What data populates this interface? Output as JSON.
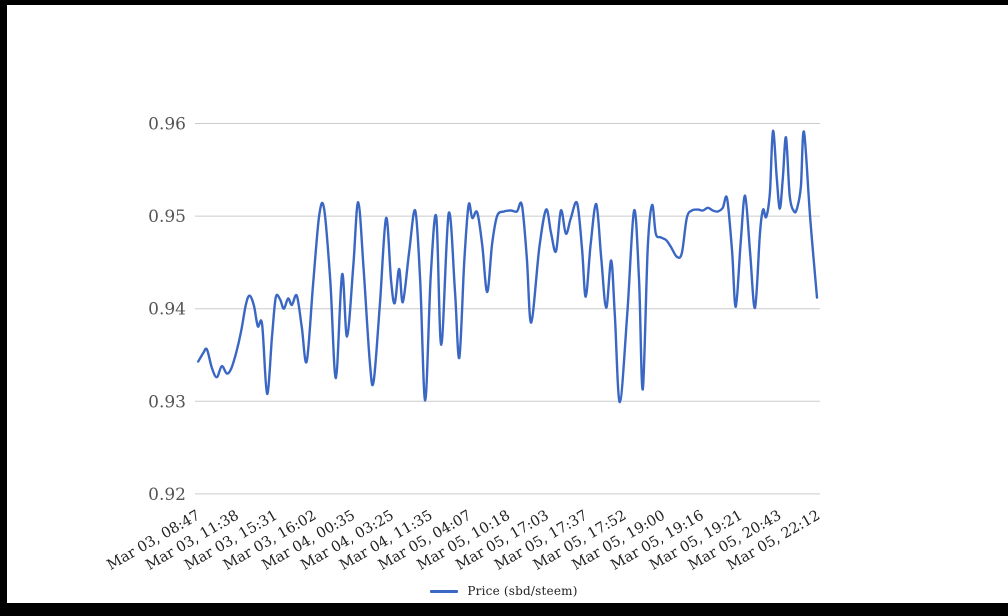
{
  "chart_data": {
    "type": "line",
    "title": "",
    "legend": "Price (sbd/steem)",
    "legend_position": "bottom",
    "series": [
      {
        "name": "Price (sbd/steem)",
        "points": [
          [
            0.002,
            0.9343
          ],
          [
            0.01,
            0.9352
          ],
          [
            0.016,
            0.9356
          ],
          [
            0.024,
            0.9336
          ],
          [
            0.032,
            0.9326
          ],
          [
            0.04,
            0.9338
          ],
          [
            0.048,
            0.933
          ],
          [
            0.055,
            0.9335
          ],
          [
            0.063,
            0.9352
          ],
          [
            0.071,
            0.9375
          ],
          [
            0.079,
            0.9405
          ],
          [
            0.085,
            0.9414
          ],
          [
            0.092,
            0.9403
          ],
          [
            0.098,
            0.9381
          ],
          [
            0.105,
            0.9383
          ],
          [
            0.113,
            0.9308
          ],
          [
            0.121,
            0.937
          ],
          [
            0.127,
            0.9412
          ],
          [
            0.134,
            0.941
          ],
          [
            0.14,
            0.94
          ],
          [
            0.147,
            0.9411
          ],
          [
            0.153,
            0.9404
          ],
          [
            0.161,
            0.9414
          ],
          [
            0.169,
            0.938
          ],
          [
            0.177,
            0.9343
          ],
          [
            0.187,
            0.9424
          ],
          [
            0.197,
            0.95
          ],
          [
            0.205,
            0.9508
          ],
          [
            0.215,
            0.943
          ],
          [
            0.224,
            0.9325
          ],
          [
            0.234,
            0.9437
          ],
          [
            0.242,
            0.937
          ],
          [
            0.252,
            0.9445
          ],
          [
            0.26,
            0.9515
          ],
          [
            0.269,
            0.944
          ],
          [
            0.279,
            0.934
          ],
          [
            0.285,
            0.9322
          ],
          [
            0.295,
            0.9405
          ],
          [
            0.305,
            0.9498
          ],
          [
            0.313,
            0.943
          ],
          [
            0.319,
            0.9406
          ],
          [
            0.326,
            0.9443
          ],
          [
            0.332,
            0.9407
          ],
          [
            0.342,
            0.946
          ],
          [
            0.352,
            0.9506
          ],
          [
            0.36,
            0.943
          ],
          [
            0.368,
            0.9301
          ],
          [
            0.377,
            0.9435
          ],
          [
            0.386,
            0.9499
          ],
          [
            0.394,
            0.9361
          ],
          [
            0.406,
            0.9503
          ],
          [
            0.416,
            0.942
          ],
          [
            0.423,
            0.9347
          ],
          [
            0.431,
            0.945
          ],
          [
            0.438,
            0.9512
          ],
          [
            0.444,
            0.9498
          ],
          [
            0.452,
            0.9504
          ],
          [
            0.46,
            0.9469
          ],
          [
            0.468,
            0.9418
          ],
          [
            0.476,
            0.947
          ],
          [
            0.484,
            0.95
          ],
          [
            0.495,
            0.9505
          ],
          [
            0.506,
            0.9506
          ],
          [
            0.516,
            0.9505
          ],
          [
            0.524,
            0.9512
          ],
          [
            0.532,
            0.9455
          ],
          [
            0.539,
            0.9385
          ],
          [
            0.552,
            0.9465
          ],
          [
            0.563,
            0.9507
          ],
          [
            0.571,
            0.9482
          ],
          [
            0.579,
            0.9462
          ],
          [
            0.587,
            0.9506
          ],
          [
            0.595,
            0.9481
          ],
          [
            0.603,
            0.9498
          ],
          [
            0.613,
            0.9514
          ],
          [
            0.621,
            0.9465
          ],
          [
            0.627,
            0.9413
          ],
          [
            0.635,
            0.947
          ],
          [
            0.644,
            0.9513
          ],
          [
            0.652,
            0.9455
          ],
          [
            0.66,
            0.9401
          ],
          [
            0.668,
            0.9452
          ],
          [
            0.674,
            0.9392
          ],
          [
            0.682,
            0.9299
          ],
          [
            0.694,
            0.9395
          ],
          [
            0.705,
            0.9506
          ],
          [
            0.713,
            0.943
          ],
          [
            0.719,
            0.9313
          ],
          [
            0.727,
            0.9465
          ],
          [
            0.734,
            0.9512
          ],
          [
            0.74,
            0.9481
          ],
          [
            0.748,
            0.9477
          ],
          [
            0.757,
            0.9474
          ],
          [
            0.765,
            0.9466
          ],
          [
            0.774,
            0.9456
          ],
          [
            0.782,
            0.946
          ],
          [
            0.79,
            0.9498
          ],
          [
            0.798,
            0.9506
          ],
          [
            0.808,
            0.9507
          ],
          [
            0.816,
            0.9506
          ],
          [
            0.824,
            0.9509
          ],
          [
            0.832,
            0.9506
          ],
          [
            0.84,
            0.9505
          ],
          [
            0.848,
            0.9509
          ],
          [
            0.855,
            0.9519
          ],
          [
            0.863,
            0.9462
          ],
          [
            0.869,
            0.9402
          ],
          [
            0.877,
            0.9472
          ],
          [
            0.884,
            0.9522
          ],
          [
            0.892,
            0.9462
          ],
          [
            0.9,
            0.9401
          ],
          [
            0.908,
            0.9482
          ],
          [
            0.913,
            0.9507
          ],
          [
            0.918,
            0.9499
          ],
          [
            0.924,
            0.9525
          ],
          [
            0.929,
            0.9592
          ],
          [
            0.935,
            0.9542
          ],
          [
            0.94,
            0.9508
          ],
          [
            0.945,
            0.9542
          ],
          [
            0.95,
            0.9585
          ],
          [
            0.956,
            0.9522
          ],
          [
            0.963,
            0.9505
          ],
          [
            0.968,
            0.9509
          ],
          [
            0.974,
            0.9532
          ],
          [
            0.979,
            0.9591
          ],
          [
            0.989,
            0.9498
          ],
          [
            1.0,
            0.9412
          ]
        ]
      }
    ],
    "x_tick_labels": [
      "Mar 03, 08:47",
      "Mar 03, 11:38",
      "Mar 03, 15:31",
      "Mar 03, 16:02",
      "Mar 04, 00:35",
      "Mar 04, 03:25",
      "Mar 04, 11:35",
      "Mar 05, 04:07",
      "Mar 05, 10:18",
      "Mar 05, 17:03",
      "Mar 05, 17:37",
      "Mar 05, 17:52",
      "Mar 05, 19:00",
      "Mar 05, 19:16",
      "Mar 05, 19:21",
      "Mar 05, 20:43",
      "Mar 05, 22:12"
    ],
    "y_tick_labels": [
      "0.92",
      "0.93",
      "0.94",
      "0.95",
      "0.96"
    ],
    "y_ticks": [
      0.92,
      0.93,
      0.94,
      0.95,
      0.96
    ],
    "ylim": [
      0.92,
      0.96
    ],
    "grid": true,
    "colors": {
      "line": "#3b67c4",
      "gridline": "#cccccc",
      "y_label_text": "#555555",
      "x_label_text": "#222222",
      "legend_text": "#222222",
      "background": "#ffffff",
      "frame": "#000000"
    }
  }
}
